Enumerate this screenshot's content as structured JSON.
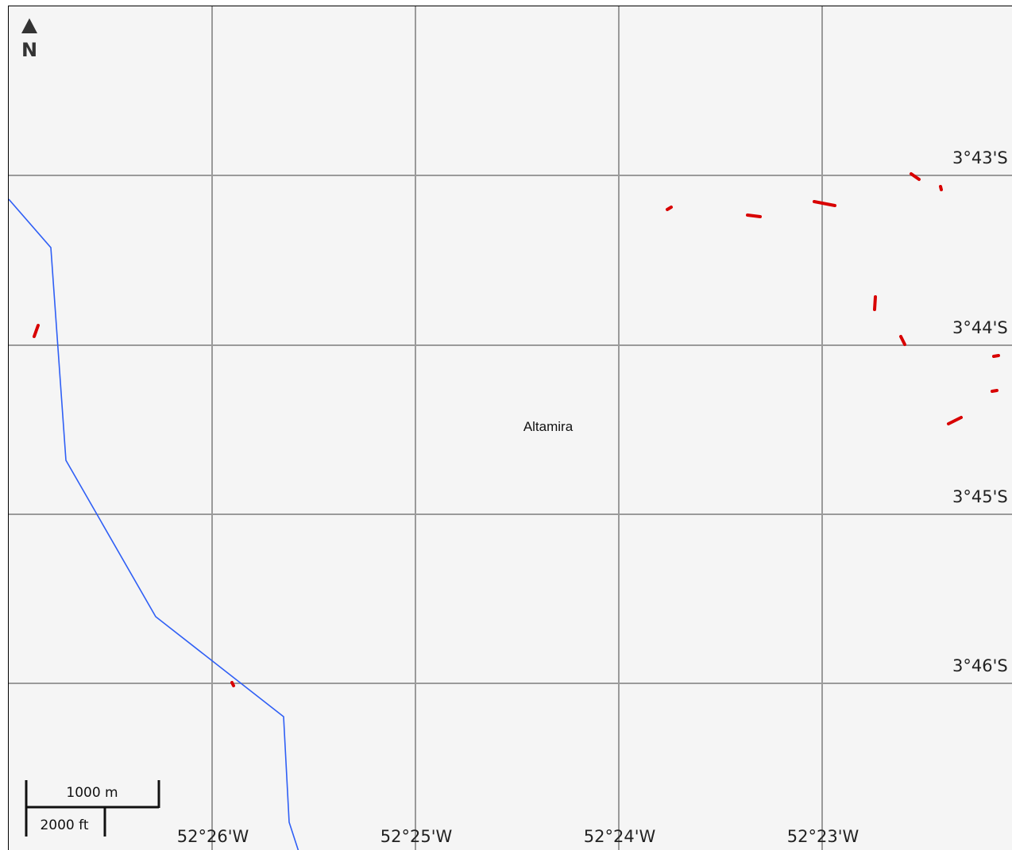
{
  "map": {
    "place_labels": [
      {
        "name": "Altamira"
      }
    ],
    "longitude_labels": [
      "52°26'W",
      "52°25'W",
      "52°24'W",
      "52°23'W"
    ],
    "latitude_labels": [
      "3°43'S",
      "3°44'S",
      "3°45'S",
      "3°46'S"
    ],
    "north_arrow": {
      "icon": "north-arrow-icon",
      "label": "N"
    },
    "scale_bar": {
      "metric_label": "1000 m",
      "imperial_label": "2000 ft"
    },
    "colors": {
      "background": "#f5f5f5",
      "graticule": "#9a9a9a",
      "river": "#2f5ff5",
      "features": "#d80000"
    }
  }
}
